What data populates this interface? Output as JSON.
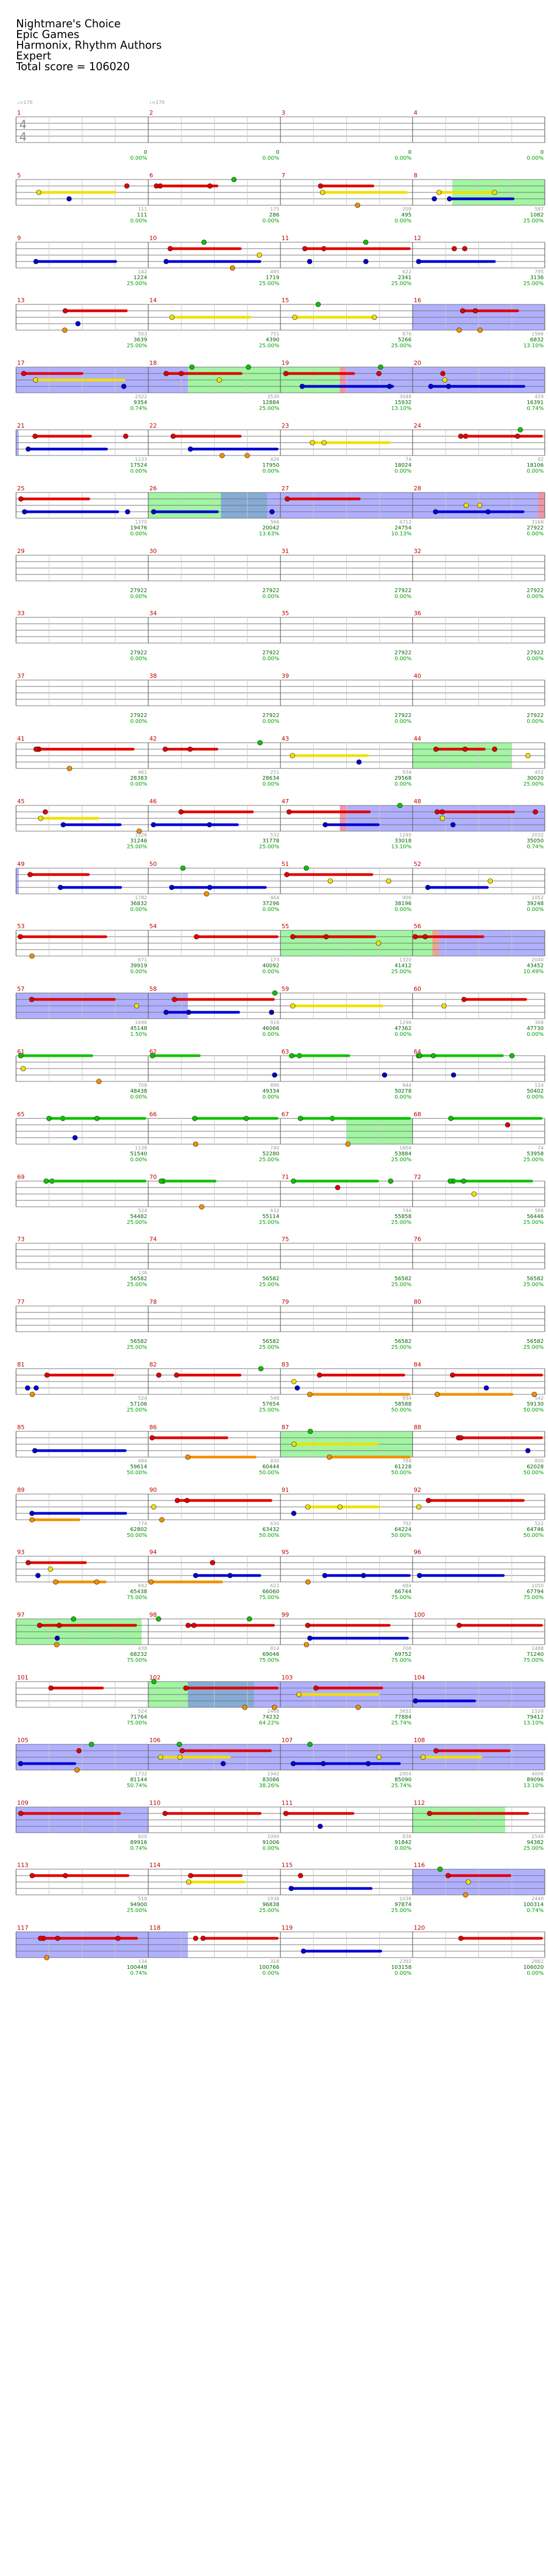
{
  "header": {
    "song_title": "Nightmare's Choice",
    "artist": "Epic Games",
    "charter": "Harmonix, Rhythm Authors",
    "difficulty": "Expert",
    "total_score_label": "Total score = 106020"
  },
  "time_signature": {
    "top": "4",
    "bottom": "4"
  },
  "tempo": {
    "bpm_markers": [
      "♩=170",
      "♩=170"
    ]
  },
  "colors": {
    "green_note": "#10c000",
    "red_note": "#e00000",
    "yellow_note": "#f0e000",
    "blue_note": "#0000d0",
    "orange_note": "#f09000",
    "star_power": "#00c000",
    "overdrive_region": "#4040e0",
    "solo_region": "#60e060",
    "measure_number": "#c00000",
    "score_text": "#006400"
  },
  "measures": [
    {
      "n": "1",
      "score": "0",
      "pct": "0.00%",
      "sub": ""
    },
    {
      "n": "2",
      "score": "0",
      "pct": "0.00%",
      "sub": ""
    },
    {
      "n": "3",
      "score": "0",
      "pct": "0.00%",
      "sub": ""
    },
    {
      "n": "4",
      "score": "0",
      "pct": "0.00%",
      "sub": ""
    },
    {
      "n": "5",
      "score": "111",
      "pct": "0.00%",
      "sub": "111"
    },
    {
      "n": "6",
      "score": "286",
      "pct": "0.00%",
      "sub": "175"
    },
    {
      "n": "7",
      "score": "495",
      "pct": "0.00%",
      "sub": "209"
    },
    {
      "n": "8",
      "score": "1082",
      "pct": "25.00%",
      "sub": "587"
    },
    {
      "n": "9",
      "score": "1224",
      "pct": "25.00%",
      "sub": "142"
    },
    {
      "n": "10",
      "score": "1719",
      "pct": "25.00%",
      "sub": "495"
    },
    {
      "n": "11",
      "score": "2341",
      "pct": "25.00%",
      "sub": "622"
    },
    {
      "n": "12",
      "score": "3136",
      "pct": "25.00%",
      "sub": "795"
    },
    {
      "n": "13",
      "score": "3639",
      "pct": "25.00%",
      "sub": "503"
    },
    {
      "n": "14",
      "score": "4390",
      "pct": "25.00%",
      "sub": "751"
    },
    {
      "n": "15",
      "score": "5266",
      "pct": "25.00%",
      "sub": "876"
    },
    {
      "n": "16",
      "score": "6832",
      "pct": "13.10%",
      "sub": "1566"
    },
    {
      "n": "17",
      "score": "9354",
      "pct": "0.74%",
      "sub": "2522"
    },
    {
      "n": "18",
      "score": "12884",
      "pct": "25.00%",
      "sub": "3530"
    },
    {
      "n": "19",
      "score": "15932",
      "pct": "13.10%",
      "sub": "3048"
    },
    {
      "n": "20",
      "score": "16391",
      "pct": "0.74%",
      "sub": "459"
    },
    {
      "n": "21",
      "score": "17524",
      "pct": "0.00%",
      "sub": "1133"
    },
    {
      "n": "22",
      "score": "17950",
      "pct": "0.00%",
      "sub": "426"
    },
    {
      "n": "23",
      "score": "18024",
      "pct": "0.00%",
      "sub": "74"
    },
    {
      "n": "24",
      "score": "18106",
      "pct": "0.00%",
      "sub": "82"
    },
    {
      "n": "25",
      "score": "19476",
      "pct": "0.00%",
      "sub": "1370"
    },
    {
      "n": "26",
      "score": "20042",
      "pct": "13.63%",
      "sub": "566"
    },
    {
      "n": "27",
      "score": "24754",
      "pct": "10.13%",
      "sub": "4712"
    },
    {
      "n": "28",
      "score": "27922",
      "pct": "0.00%",
      "sub": "3168"
    },
    {
      "n": "29",
      "score": "27922",
      "pct": "0.00%",
      "sub": ""
    },
    {
      "n": "30",
      "score": "27922",
      "pct": "0.00%",
      "sub": ""
    },
    {
      "n": "31",
      "score": "27922",
      "pct": "0.00%",
      "sub": ""
    },
    {
      "n": "32",
      "score": "27922",
      "pct": "0.00%",
      "sub": ""
    },
    {
      "n": "33",
      "score": "27922",
      "pct": "0.00%",
      "sub": ""
    },
    {
      "n": "34",
      "score": "27922",
      "pct": "0.00%",
      "sub": ""
    },
    {
      "n": "35",
      "score": "27922",
      "pct": "0.00%",
      "sub": ""
    },
    {
      "n": "36",
      "score": "27922",
      "pct": "0.00%",
      "sub": ""
    },
    {
      "n": "37",
      "score": "27922",
      "pct": "0.00%",
      "sub": ""
    },
    {
      "n": "38",
      "score": "27922",
      "pct": "0.00%",
      "sub": ""
    },
    {
      "n": "39",
      "score": "27922",
      "pct": "0.00%",
      "sub": ""
    },
    {
      "n": "40",
      "score": "27922",
      "pct": "0.00%",
      "sub": ""
    },
    {
      "n": "41",
      "score": "28383",
      "pct": "0.00%",
      "sub": "461"
    },
    {
      "n": "42",
      "score": "28634",
      "pct": "0.00%",
      "sub": "251"
    },
    {
      "n": "43",
      "score": "29568",
      "pct": "0.00%",
      "sub": "934"
    },
    {
      "n": "44",
      "score": "30020",
      "pct": "25.00%",
      "sub": "452"
    },
    {
      "n": "45",
      "score": "31246",
      "pct": "25.00%",
      "sub": "1226"
    },
    {
      "n": "46",
      "score": "31778",
      "pct": "25.00%",
      "sub": "532"
    },
    {
      "n": "47",
      "score": "33018",
      "pct": "13.10%",
      "sub": "1240"
    },
    {
      "n": "48",
      "score": "35050",
      "pct": "0.74%",
      "sub": "2032"
    },
    {
      "n": "49",
      "score": "36832",
      "pct": "0.00%",
      "sub": "1782"
    },
    {
      "n": "50",
      "score": "37296",
      "pct": "0.00%",
      "sub": "464"
    },
    {
      "n": "51",
      "score": "38196",
      "pct": "0.00%",
      "sub": "900"
    },
    {
      "n": "52",
      "score": "39248",
      "pct": "0.00%",
      "sub": "1052"
    },
    {
      "n": "53",
      "score": "39919",
      "pct": "0.00%",
      "sub": "671"
    },
    {
      "n": "54",
      "score": "40092",
      "pct": "0.00%",
      "sub": "173"
    },
    {
      "n": "55",
      "score": "41412",
      "pct": "25.00%",
      "sub": "1320"
    },
    {
      "n": "56",
      "score": "43452",
      "pct": "10.49%",
      "sub": "2040"
    },
    {
      "n": "57",
      "score": "45148",
      "pct": "1.50%",
      "sub": "1696"
    },
    {
      "n": "58",
      "score": "46066",
      "pct": "0.00%",
      "sub": "918"
    },
    {
      "n": "59",
      "score": "47362",
      "pct": "0.00%",
      "sub": "1296"
    },
    {
      "n": "60",
      "score": "47730",
      "pct": "0.00%",
      "sub": "368"
    },
    {
      "n": "61",
      "score": "48438",
      "pct": "0.00%",
      "sub": "708"
    },
    {
      "n": "62",
      "score": "49334",
      "pct": "0.00%",
      "sub": "896"
    },
    {
      "n": "63",
      "score": "50278",
      "pct": "0.00%",
      "sub": "944"
    },
    {
      "n": "64",
      "score": "50402",
      "pct": "0.00%",
      "sub": "124"
    },
    {
      "n": "65",
      "score": "51540",
      "pct": "0.00%",
      "sub": "1138"
    },
    {
      "n": "66",
      "score": "52280",
      "pct": "25.00%",
      "sub": "740"
    },
    {
      "n": "67",
      "score": "53884",
      "pct": "25.00%",
      "sub": "1604"
    },
    {
      "n": "68",
      "score": "53958",
      "pct": "25.00%",
      "sub": "74"
    },
    {
      "n": "69",
      "score": "54482",
      "pct": "25.00%",
      "sub": "524"
    },
    {
      "n": "70",
      "score": "55114",
      "pct": "25.00%",
      "sub": "632"
    },
    {
      "n": "71",
      "score": "55858",
      "pct": "25.00%",
      "sub": "744"
    },
    {
      "n": "72",
      "score": "56446",
      "pct": "25.00%",
      "sub": "588"
    },
    {
      "n": "73",
      "score": "56582",
      "pct": "25.00%",
      "sub": "136"
    },
    {
      "n": "74",
      "score": "56582",
      "pct": "25.00%",
      "sub": ""
    },
    {
      "n": "75",
      "score": "56582",
      "pct": "25.00%",
      "sub": ""
    },
    {
      "n": "76",
      "score": "56582",
      "pct": "25.00%",
      "sub": ""
    },
    {
      "n": "77",
      "score": "56582",
      "pct": "25.00%",
      "sub": ""
    },
    {
      "n": "78",
      "score": "56582",
      "pct": "25.00%",
      "sub": ""
    },
    {
      "n": "79",
      "score": "56582",
      "pct": "25.00%",
      "sub": ""
    },
    {
      "n": "80",
      "score": "56582",
      "pct": "25.00%",
      "sub": ""
    },
    {
      "n": "81",
      "score": "57106",
      "pct": "25.00%",
      "sub": "524"
    },
    {
      "n": "82",
      "score": "57654",
      "pct": "25.00%",
      "sub": "548"
    },
    {
      "n": "83",
      "score": "58588",
      "pct": "50.00%",
      "sub": "934"
    },
    {
      "n": "84",
      "score": "59130",
      "pct": "50.00%",
      "sub": "542"
    },
    {
      "n": "85",
      "score": "59614",
      "pct": "50.00%",
      "sub": "484"
    },
    {
      "n": "86",
      "score": "60444",
      "pct": "50.00%",
      "sub": "830"
    },
    {
      "n": "87",
      "score": "61228",
      "pct": "50.00%",
      "sub": "784"
    },
    {
      "n": "88",
      "score": "62028",
      "pct": "50.00%",
      "sub": "800"
    },
    {
      "n": "89",
      "score": "62802",
      "pct": "50.00%",
      "sub": "774"
    },
    {
      "n": "90",
      "score": "63432",
      "pct": "50.00%",
      "sub": "630"
    },
    {
      "n": "91",
      "score": "64224",
      "pct": "50.00%",
      "sub": "792"
    },
    {
      "n": "92",
      "score": "64746",
      "pct": "50.00%",
      "sub": "522"
    },
    {
      "n": "93",
      "score": "65438",
      "pct": "75.00%",
      "sub": "692"
    },
    {
      "n": "94",
      "score": "66060",
      "pct": "75.00%",
      "sub": "622"
    },
    {
      "n": "95",
      "score": "66744",
      "pct": "75.00%",
      "sub": "684"
    },
    {
      "n": "96",
      "score": "67794",
      "pct": "75.00%",
      "sub": "1050"
    },
    {
      "n": "97",
      "score": "68232",
      "pct": "75.00%",
      "sub": "438"
    },
    {
      "n": "98",
      "score": "69046",
      "pct": "75.00%",
      "sub": "814"
    },
    {
      "n": "99",
      "score": "69752",
      "pct": "75.00%",
      "sub": "706"
    },
    {
      "n": "100",
      "score": "71240",
      "pct": "75.00%",
      "sub": "1488"
    },
    {
      "n": "101",
      "score": "71764",
      "pct": "75.00%",
      "sub": "524"
    },
    {
      "n": "102",
      "score": "74232",
      "pct": "64.22%",
      "sub": "2468"
    },
    {
      "n": "103",
      "score": "77884",
      "pct": "25.74%",
      "sub": "3652"
    },
    {
      "n": "104",
      "score": "79412",
      "pct": "13.10%",
      "sub": "1528"
    },
    {
      "n": "105",
      "score": "81144",
      "pct": "50.74%",
      "sub": "1732"
    },
    {
      "n": "106",
      "score": "83086",
      "pct": "38.26%",
      "sub": "1942"
    },
    {
      "n": "107",
      "score": "85090",
      "pct": "25.74%",
      "sub": "2004"
    },
    {
      "n": "108",
      "score": "89096",
      "pct": "13.10%",
      "sub": "4006"
    },
    {
      "n": "109",
      "score": "89916",
      "pct": "0.74%",
      "sub": "820"
    },
    {
      "n": "110",
      "score": "91006",
      "pct": "0.00%",
      "sub": "1090"
    },
    {
      "n": "111",
      "score": "91842",
      "pct": "0.00%",
      "sub": "836"
    },
    {
      "n": "112",
      "score": "94382",
      "pct": "25.00%",
      "sub": "2540"
    },
    {
      "n": "113",
      "score": "94900",
      "pct": "25.00%",
      "sub": "518"
    },
    {
      "n": "114",
      "score": "96838",
      "pct": "25.00%",
      "sub": "1938"
    },
    {
      "n": "115",
      "score": "97874",
      "pct": "25.00%",
      "sub": "1036"
    },
    {
      "n": "116",
      "score": "100314",
      "pct": "0.74%",
      "sub": "2440"
    },
    {
      "n": "117",
      "score": "100448",
      "pct": "0.74%",
      "sub": "134"
    },
    {
      "n": "118",
      "score": "100766",
      "pct": "0.00%",
      "sub": "318"
    },
    {
      "n": "119",
      "score": "103158",
      "pct": "0.00%",
      "sub": "2392"
    },
    {
      "n": "120",
      "score": "106020",
      "pct": "0.00%",
      "sub": "2862"
    }
  ]
}
